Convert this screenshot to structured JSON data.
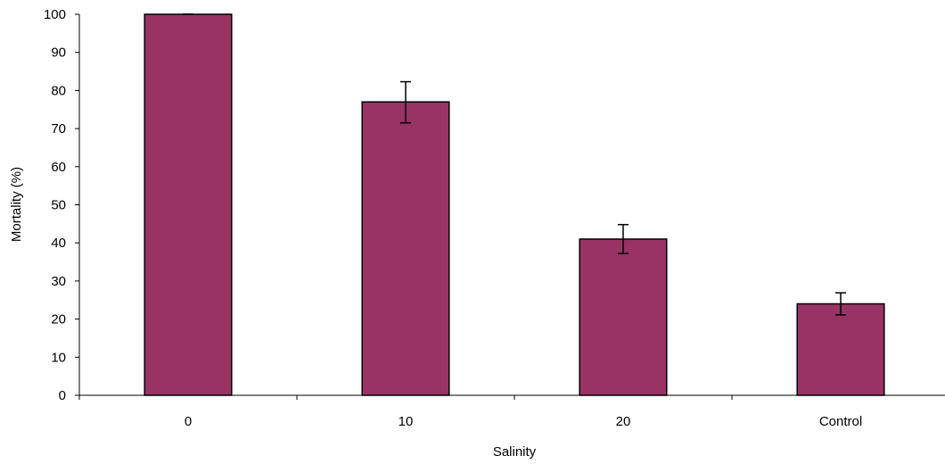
{
  "chart_data": {
    "type": "bar",
    "title": "",
    "xlabel": "Salinity",
    "ylabel": "Mortality (%)",
    "categories": [
      "0",
      "10",
      "20",
      "Control"
    ],
    "values": [
      100,
      77,
      41,
      24
    ],
    "error_upper": [
      100,
      82.3,
      44.8,
      26.9
    ],
    "error_lower": [
      100,
      71.5,
      37.2,
      21.1
    ],
    "ylim": [
      0,
      100
    ],
    "yticks": [
      0,
      10,
      20,
      30,
      40,
      50,
      60,
      70,
      80,
      90,
      100
    ],
    "grid": false,
    "legend": "none",
    "colors": {
      "bar_fill": "#993366",
      "bar_stroke": "#000000"
    }
  }
}
